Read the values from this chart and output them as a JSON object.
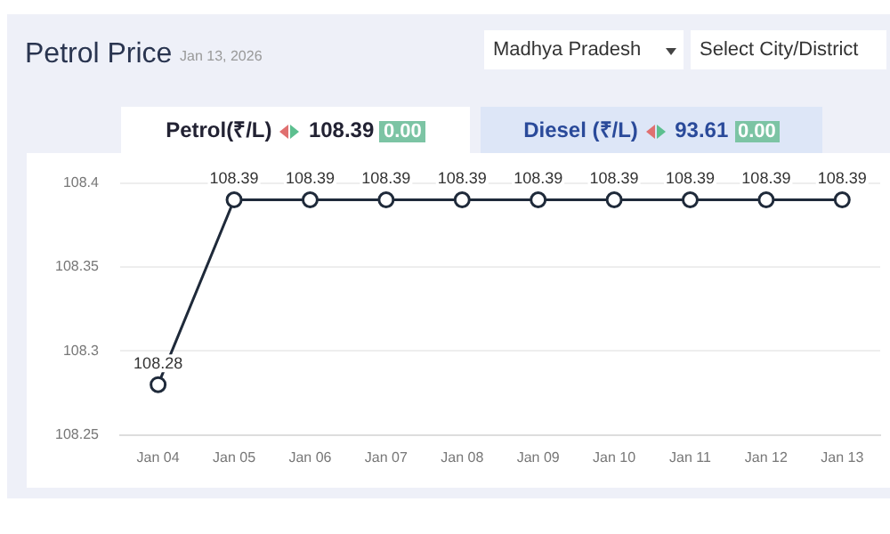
{
  "chart_data": {
    "type": "line",
    "title": "Petrol Price",
    "subtitle": "Jan 13, 2026",
    "annotations": [
      "Madhya Pradesh",
      "Select City/District",
      "Petrol(₹/L)",
      "108.39",
      "0.00",
      "Diesel (₹/L)",
      "93.61",
      "0.00"
    ],
    "categories": [
      "Jan 04",
      "Jan 05",
      "Jan 06",
      "Jan 07",
      "Jan 08",
      "Jan 09",
      "Jan 10",
      "Jan 11",
      "Jan 12",
      "Jan 13"
    ],
    "series": [
      {
        "color": "#1f2a3a",
        "values": [
          108.28,
          108.39,
          108.39,
          108.39,
          108.39,
          108.39,
          108.39,
          108.39,
          108.39,
          108.39
        ]
      }
    ],
    "ylim": [
      108.25,
      108.4
    ],
    "yticks": [
      108.25,
      108.3,
      108.35,
      108.4
    ],
    "grid": "y",
    "legend": false,
    "marker": "circle",
    "line_style": "solid",
    "data_labels": true
  }
}
